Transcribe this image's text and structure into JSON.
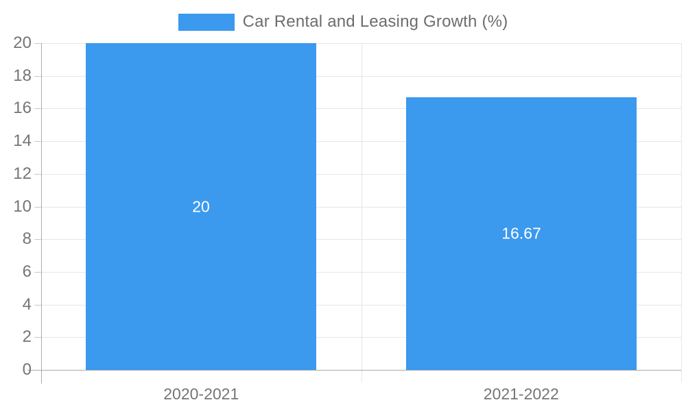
{
  "chart_data": {
    "type": "bar",
    "title": "Car Rental and Leasing Growth (%)",
    "categories": [
      "2020-2021",
      "2021-2022"
    ],
    "values": [
      20,
      16.67
    ],
    "value_labels": [
      "20",
      "16.67"
    ],
    "ylabel": "",
    "xlabel": "",
    "ylim": [
      0,
      20
    ],
    "ytick_step": 2,
    "ytick_labels": [
      "0",
      "2",
      "4",
      "6",
      "8",
      "10",
      "12",
      "14",
      "16",
      "18",
      "20"
    ],
    "grid": true,
    "legend_position": "top-center",
    "colors": {
      "bar": "#3b99ee",
      "bar_label_text": "#ffffff",
      "axis_text": "#757575",
      "legend_text": "#6d6d6d",
      "gridline": "#e6e6e6",
      "axis_line": "#aaaaaa",
      "tick": "#c9c9c9"
    }
  }
}
